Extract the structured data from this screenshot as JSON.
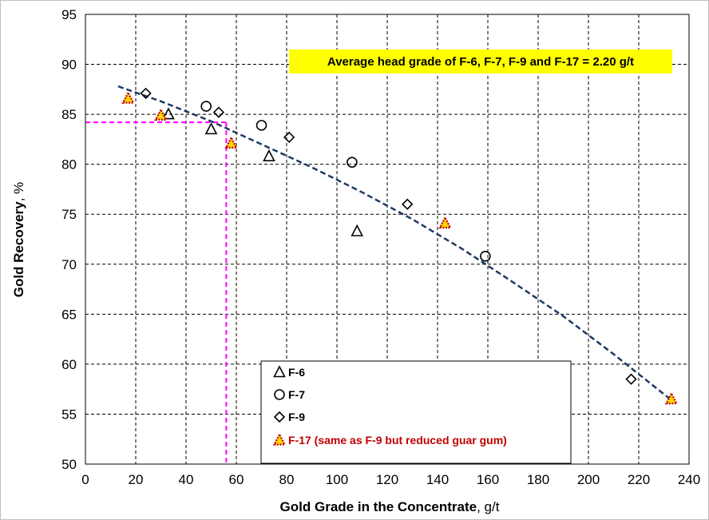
{
  "chart_data": {
    "type": "scatter",
    "title": "",
    "xlabel": "Gold Grade in the Concentrate",
    "xlabel_unit": ", g/t",
    "ylabel": "Gold Recovery",
    "ylabel_unit": ", %",
    "xlim": [
      0,
      240
    ],
    "ylim": [
      50,
      95
    ],
    "xticks": [
      0,
      20,
      40,
      60,
      80,
      100,
      120,
      140,
      160,
      180,
      200,
      220,
      240
    ],
    "yticks": [
      50,
      55,
      60,
      65,
      70,
      75,
      80,
      85,
      90,
      95
    ],
    "grid": true,
    "legend_position": "bottom-center",
    "series": [
      {
        "name": "F-6",
        "marker": "triangle",
        "color": "#000000",
        "x": [
          33,
          50,
          73,
          108
        ],
        "y": [
          85.0,
          83.5,
          80.8,
          73.3
        ]
      },
      {
        "name": "F-7",
        "marker": "circle",
        "color": "#000000",
        "x": [
          48,
          70,
          106,
          159
        ],
        "y": [
          85.8,
          83.9,
          80.2,
          70.8
        ]
      },
      {
        "name": "F-9",
        "marker": "diamond",
        "color": "#000000",
        "x": [
          24,
          53,
          81,
          128,
          217
        ],
        "y": [
          87.1,
          85.2,
          82.7,
          76.0,
          58.5
        ]
      },
      {
        "name": "F-17 (same as F-9 but reduced guar gum)",
        "marker": "filled-triangle",
        "color": "#ffd700",
        "edge_color": "#c00000",
        "x": [
          17,
          30,
          58,
          143,
          233
        ],
        "y": [
          86.6,
          84.9,
          82.1,
          74.1,
          56.5
        ]
      }
    ],
    "trendline": {
      "style": "dashed",
      "color": "#1f3864",
      "x": [
        13,
        30,
        50,
        70,
        90,
        110,
        130,
        150,
        170,
        190,
        210,
        233
      ],
      "y": [
        87.8,
        86.3,
        84.3,
        82.0,
        79.7,
        77.2,
        74.5,
        71.5,
        68.2,
        64.8,
        61.0,
        56.4
      ]
    },
    "reference_lines": {
      "color": "#ff00ff",
      "style": "dashed",
      "horizontal_y": 84.2,
      "vertical_x": 56
    },
    "annotation": "Average head grade of F-6, F-7, F-9 and F-17 = 2.20 g/t",
    "annotation_bg": "#ffff00"
  }
}
